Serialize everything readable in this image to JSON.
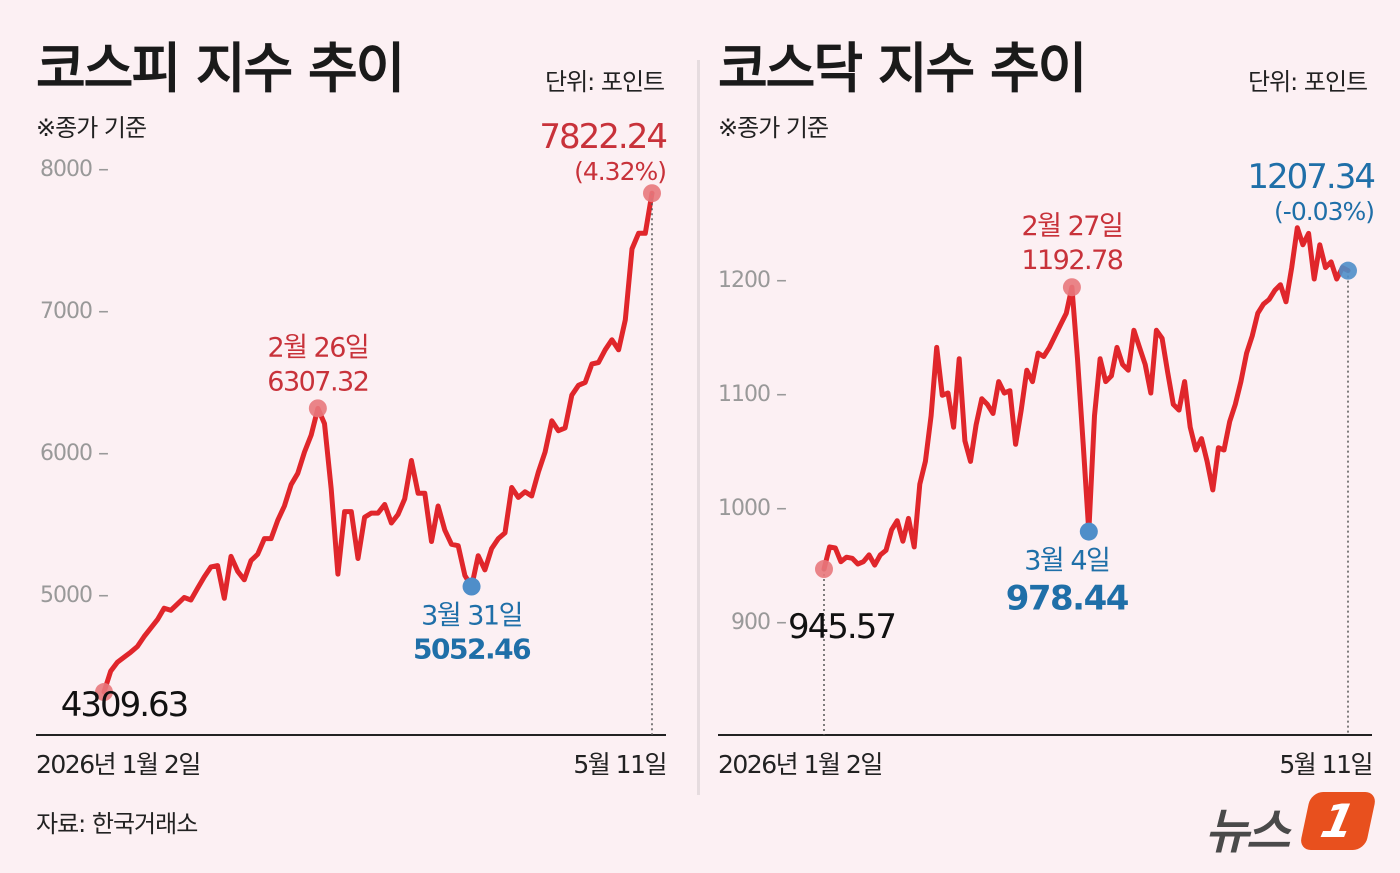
{
  "colors": {
    "line": "#e0262b",
    "dot_red": "#e8787c",
    "dot_blue": "#4f8ec9",
    "label_red": "#c8323a",
    "label_blue": "#1f6fa8",
    "axis": "#222222",
    "tick_text": "#999999"
  },
  "source": "자료: 한국거래소",
  "logo": {
    "text": "뉴스",
    "badge": "1"
  },
  "left": {
    "title": "코스피 지수 추이",
    "unit": "단위: 포인트",
    "basis": "※종가 기준",
    "x_start_label": "2026년 1월 2일",
    "x_end_label": "5월 11일",
    "annotations": {
      "start_value": "4309.63",
      "peak_date": "2월 26일",
      "peak_value": "6307.32",
      "low_date": "3월 31일",
      "low_value": "5052.46",
      "end_value": "7822.24",
      "end_change": "(4.32%)"
    },
    "chart_data": {
      "type": "line",
      "title": "코스피 지수 추이",
      "ylim": [
        4000,
        8000
      ],
      "yticks": [
        5000,
        6000,
        7000,
        8000
      ],
      "grid": false,
      "series": [
        {
          "values": [
            4309.63,
            4457,
            4520,
            4555,
            4590,
            4630,
            4700,
            4760,
            4820,
            4900,
            4885,
            4930,
            4975,
            4958,
            5040,
            5120,
            5190,
            5200,
            4970,
            5265,
            5160,
            5100,
            5235,
            5280,
            5390,
            5390,
            5520,
            5620,
            5770,
            5850,
            6000,
            6120,
            6307.32,
            6200,
            5740,
            5140,
            5580,
            5580,
            5250,
            5540,
            5570,
            5570,
            5630,
            5500,
            5560,
            5670,
            5940,
            5710,
            5710,
            5370,
            5620,
            5450,
            5350,
            5340,
            5130,
            5052.46,
            5270,
            5170,
            5320,
            5390,
            5430,
            5750,
            5680,
            5720,
            5690,
            5860,
            6000,
            6220,
            6150,
            6170,
            6400,
            6470,
            6490,
            6620,
            6630,
            6720,
            6790,
            6720,
            6930,
            7430,
            7540,
            7540,
            7822.24
          ]
        }
      ]
    }
  },
  "right": {
    "title": "코스닥 지수 추이",
    "unit": "단위: 포인트",
    "basis": "※종가 기준",
    "x_start_label": "2026년 1월 2일",
    "x_end_label": "5월 11일",
    "annotations": {
      "start_value": "945.57",
      "peak_date": "2월 27일",
      "peak_value": "1192.78",
      "low_date": "3월 4일",
      "low_value": "978.44",
      "end_value": "1207.34",
      "end_change": "(-0.03%)"
    },
    "chart_data": {
      "type": "line",
      "title": "코스닥 지수 추이",
      "ylim": [
        830,
        1270
      ],
      "yticks": [
        900,
        1000,
        1100,
        1200
      ],
      "grid": false,
      "series": [
        {
          "values": [
            945.57,
            965,
            964,
            952,
            956,
            955,
            950,
            952,
            958,
            949,
            958,
            962,
            980,
            988,
            970,
            990,
            965,
            1020,
            1040,
            1080,
            1140,
            1098,
            1100,
            1070,
            1130,
            1058,
            1040,
            1072,
            1095,
            1090,
            1082,
            1110,
            1100,
            1102,
            1055,
            1085,
            1120,
            1110,
            1135,
            1132,
            1140,
            1150,
            1160,
            1170,
            1192.78,
            1130,
            1055,
            978.44,
            1080,
            1130,
            1110,
            1115,
            1140,
            1125,
            1120,
            1155,
            1140,
            1125,
            1100,
            1155,
            1148,
            1118,
            1090,
            1085,
            1110,
            1070,
            1050,
            1060,
            1040,
            1015,
            1052,
            1050,
            1075,
            1090,
            1110,
            1135,
            1150,
            1170,
            1178,
            1182,
            1190,
            1195,
            1180,
            1210,
            1245,
            1230,
            1240,
            1200,
            1230,
            1210,
            1215,
            1200,
            1210,
            1207.34
          ]
        }
      ]
    }
  }
}
